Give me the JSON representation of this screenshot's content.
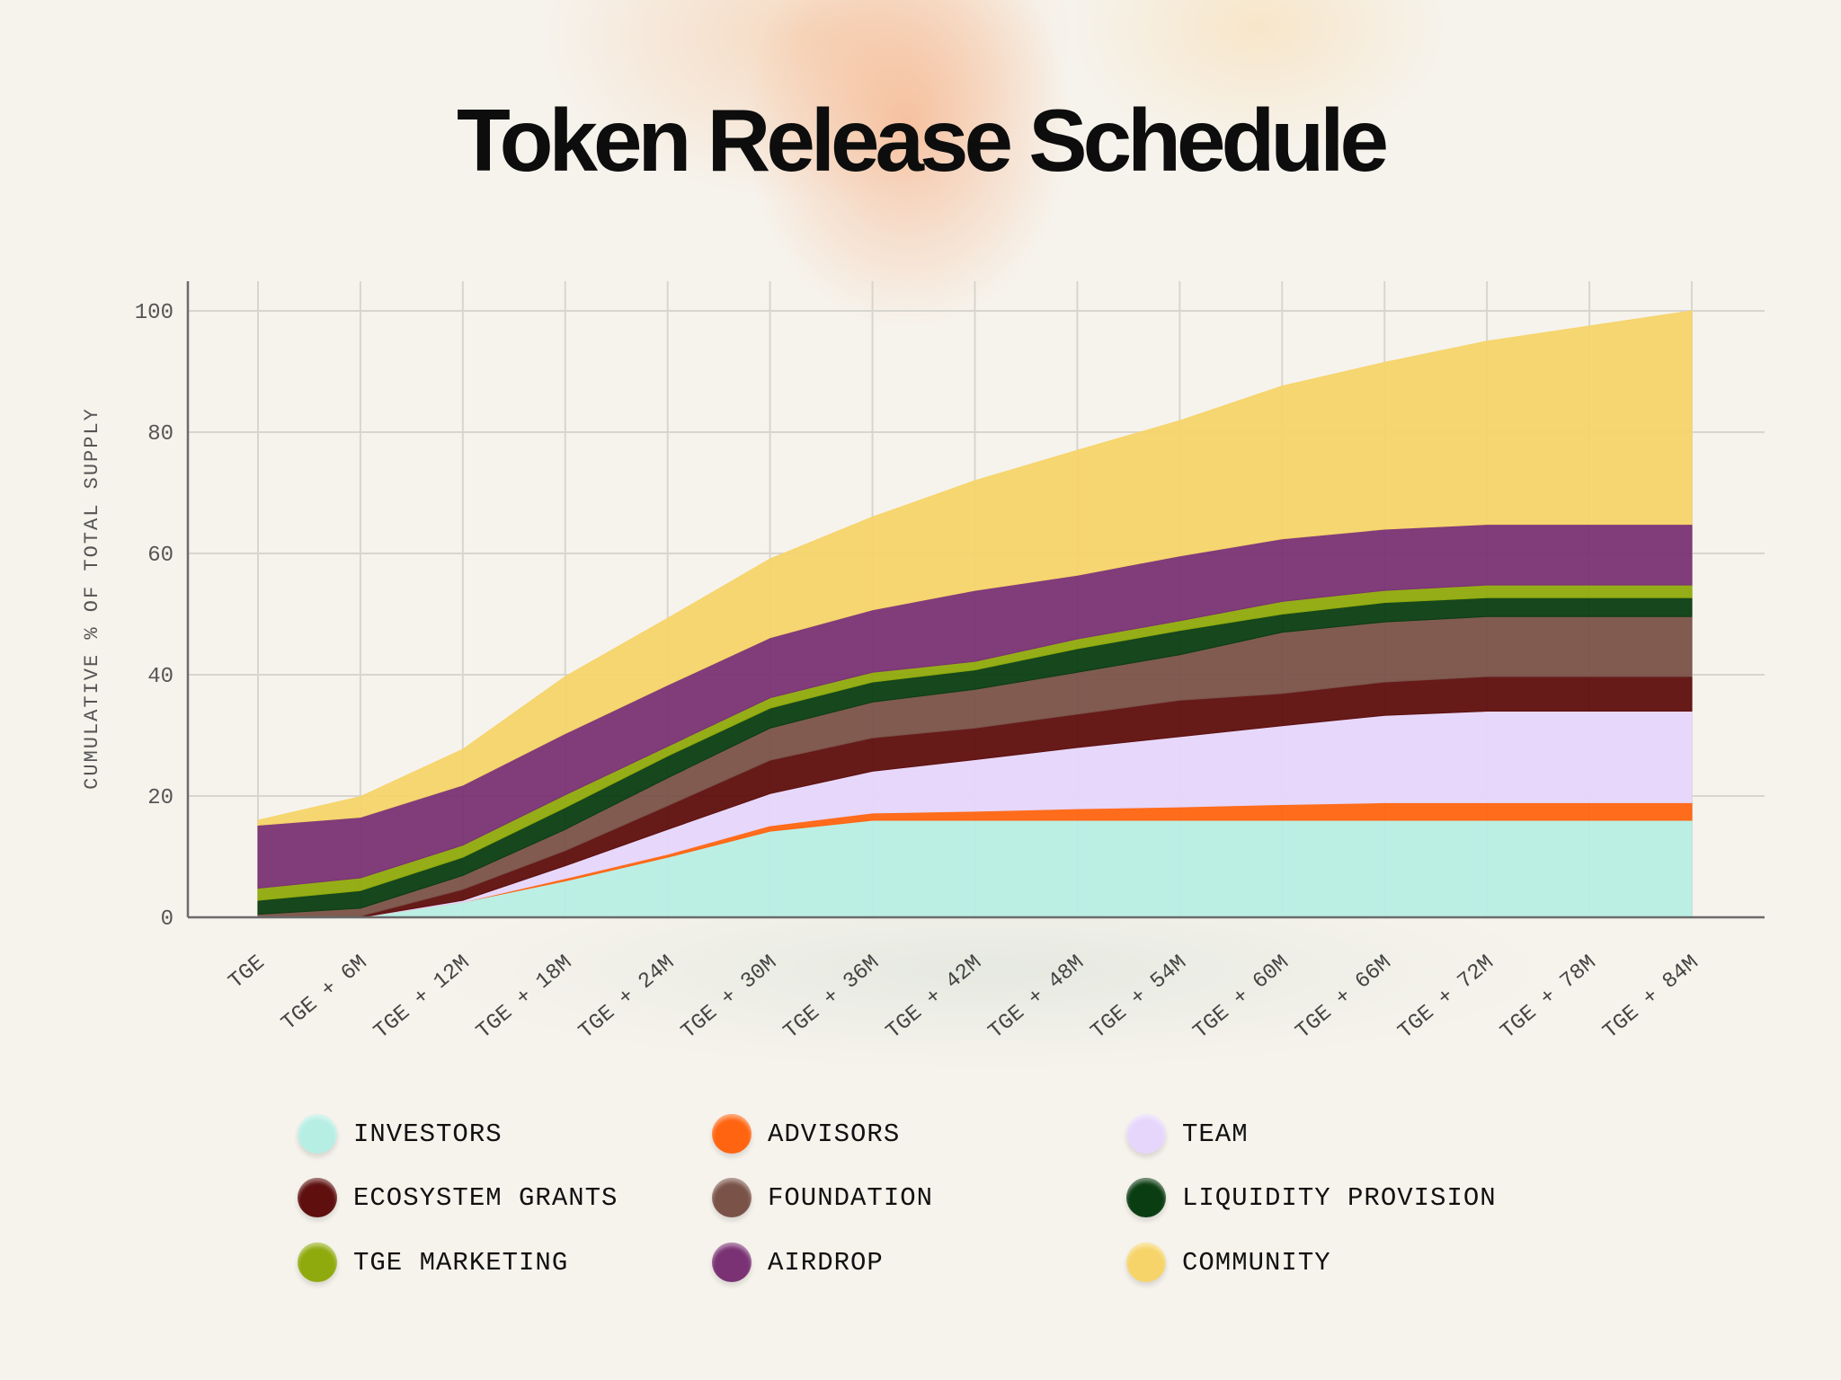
{
  "chart_data": {
    "type": "area",
    "stacked": true,
    "title": "Token Release Schedule",
    "xlabel": "",
    "ylabel": "CUMULATIVE % OF TOTAL SUPPLY",
    "ylim": [
      0,
      100
    ],
    "yticks": [
      "0",
      "20",
      "40",
      "60",
      "80",
      "100"
    ],
    "grid": true,
    "legend_position": "bottom",
    "categories": [
      "TGE",
      "TGE + 6M",
      "TGE + 12M",
      "TGE + 18M",
      "TGE + 24M",
      "TGE + 30M",
      "TGE + 36M",
      "TGE + 42M",
      "TGE + 48M",
      "TGE + 54M",
      "TGE + 60M",
      "TGE + 66M",
      "TGE + 72M",
      "TGE + 78M",
      "TGE + 84M"
    ],
    "series": [
      {
        "name": "INVESTORS",
        "color": "#b7eee4",
        "values": [
          0,
          0,
          2.5,
          6.0,
          9.9,
          14.2,
          16,
          16,
          16,
          16,
          16,
          16,
          16,
          16,
          16
        ]
      },
      {
        "name": "ADVISORS",
        "color": "#ff6410",
        "values": [
          0,
          0,
          0,
          0.4,
          0.5,
          0.9,
          1.2,
          1.5,
          1.9,
          2.2,
          2.6,
          2.9,
          2.9,
          2.9,
          2.9
        ]
      },
      {
        "name": "TEAM",
        "color": "#e6d6fc",
        "values": [
          0,
          0,
          0.3,
          2.1,
          4.1,
          5.3,
          6.9,
          8.5,
          10.1,
          11.6,
          13.0,
          14.4,
          15.1,
          15.1,
          15.1
        ]
      },
      {
        "name": "ECOSYSTEM GRANTS",
        "color": "#5e0f0e",
        "values": [
          0,
          0.2,
          1.8,
          2.5,
          3.9,
          5.5,
          5.5,
          5.2,
          5.5,
          6.0,
          5.3,
          5.5,
          5.7,
          5.7,
          5.7
        ]
      },
      {
        "name": "FOUNDATION",
        "color": "#7a5248",
        "values": [
          0.5,
          1.3,
          2.3,
          3.5,
          4.6,
          5.3,
          5.9,
          6.4,
          6.9,
          7.5,
          10.1,
          9.9,
          9.9,
          9.9,
          9.9
        ]
      },
      {
        "name": "LIQUIDITY PROVISION",
        "color": "#0b3d12",
        "values": [
          2.3,
          2.9,
          3.0,
          3.6,
          3.6,
          3.3,
          3.3,
          3.2,
          3.9,
          4.0,
          3.0,
          3.2,
          3.1,
          3.1,
          3.1
        ]
      },
      {
        "name": "TGE MARKETING",
        "color": "#8faa0c",
        "values": [
          2.0,
          2.1,
          2.0,
          2.1,
          1.6,
          1.7,
          1.6,
          1.4,
          1.6,
          1.6,
          2.1,
          2.0,
          2.1,
          2.1,
          2.1
        ]
      },
      {
        "name": "AIRDROP",
        "color": "#7a3274",
        "values": [
          10.4,
          10.0,
          9.9,
          10.1,
          10.1,
          9.9,
          10.3,
          11.7,
          10.5,
          10.7,
          10.3,
          10.1,
          10.0,
          10.0,
          10.0
        ]
      },
      {
        "name": "COMMUNITY",
        "color": "#f6d46a",
        "values": [
          0.8,
          3.4,
          5.9,
          9.4,
          11.0,
          13.0,
          15.3,
          18.1,
          20.6,
          22.3,
          25.2,
          27.5,
          30.2,
          32.7,
          35.2
        ]
      }
    ]
  }
}
